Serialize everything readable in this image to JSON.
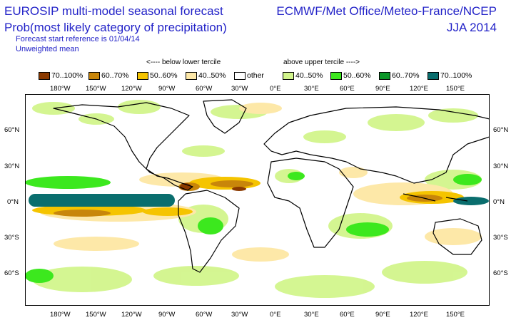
{
  "header": {
    "title": "EUROSIP multi-model seasonal forecast",
    "subtitle": "Prob(most likely category of precipitation)",
    "forecast_ref": "Forecast start reference is 01/04/14",
    "mean_type": "Unweighted mean",
    "source": "ECMWF/Met Office/Meteo-France/NCEP",
    "season": "JJA 2014"
  },
  "legend": {
    "below_label": "<---- below lower tercile",
    "above_label": "above upper tercile ---->",
    "items": [
      {
        "label": "70..100%",
        "color": "#8b3a00"
      },
      {
        "label": "60..70%",
        "color": "#c8860a"
      },
      {
        "label": "50..60%",
        "color": "#f5c400"
      },
      {
        "label": "40..50%",
        "color": "#fde8a8"
      },
      {
        "label": "other",
        "color": "#ffffff"
      },
      {
        "label": "40..50%",
        "color": "#d2f58c"
      },
      {
        "label": "50..60%",
        "color": "#3ce81e"
      },
      {
        "label": "60..70%",
        "color": "#0a9628"
      },
      {
        "label": "70..100%",
        "color": "#0a6e6e"
      }
    ]
  },
  "axes": {
    "lon_ticks": [
      "180°W",
      "150°W",
      "120°W",
      "90°W",
      "60°W",
      "30°W",
      "0°E",
      "30°E",
      "60°E",
      "90°E",
      "120°E",
      "150°E"
    ],
    "lat_ticks": [
      "60°N",
      "30°N",
      "0°N",
      "30°S",
      "60°S"
    ]
  }
}
